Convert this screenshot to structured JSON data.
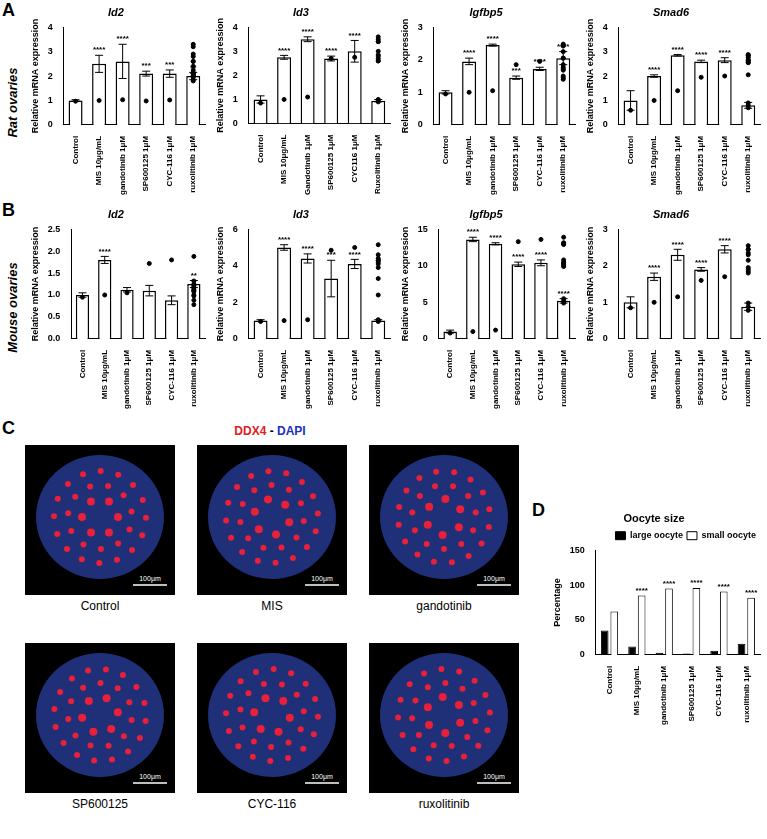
{
  "chart_data": [
    {
      "type": "bar",
      "title": "Id2",
      "y_label": "Relative mRNA expression",
      "categories": [
        "Control",
        "MIS 10μg/mL",
        "gandotinib 1μM",
        "SP600125 1μM",
        "CYC-116 1μM",
        "ruxolitinib 1μM"
      ],
      "values": [
        1.0,
        2.5,
        2.6,
        2.1,
        2.1,
        2.0
      ],
      "errors": [
        0.03,
        0.35,
        0.7,
        0.1,
        0.15,
        0.15
      ],
      "points": [
        [
          0.97,
          1.0,
          1.03,
          0.98,
          1.02
        ],
        [
          2.1,
          2.4,
          2.6,
          2.8,
          2.9
        ],
        [
          1.8,
          2.0,
          2.6,
          3.2,
          3.3
        ],
        [
          2.0,
          2.1,
          2.15
        ],
        [
          1.95,
          2.1,
          2.25
        ],
        [
          1.85,
          2.0,
          2.1
        ]
      ],
      "annotations": [
        null,
        "****",
        "****",
        "***",
        "***",
        "**"
      ],
      "color": "#ffffff",
      "ylim": [
        0,
        4
      ],
      "yticks": [
        0,
        1,
        2,
        3,
        4
      ],
      "grid": false
    },
    {
      "type": "bar",
      "title": "Id3",
      "y_label": "Relative mRNA expression",
      "categories": [
        "Control",
        "MIS 10μg/mL",
        "Gandotinib 1μM",
        "SP600125 1μM",
        "CYC116 1μM",
        "Ruxolitinib 1μM"
      ],
      "values": [
        1.0,
        2.75,
        3.5,
        2.7,
        3.0,
        0.95
      ],
      "errors": [
        0.15,
        0.08,
        0.1,
        0.1,
        0.45,
        0.05
      ],
      "points": [
        [
          0.85,
          1.0,
          1.1
        ],
        [
          2.7,
          2.75,
          2.85
        ],
        [
          3.4,
          3.5,
          3.6
        ],
        [
          2.6,
          2.7,
          2.8
        ],
        [
          2.6,
          3.0,
          3.4
        ],
        [
          0.9,
          0.95,
          1.0
        ]
      ],
      "annotations": [
        null,
        "****",
        "****",
        "****",
        "****",
        null
      ],
      "color": "#ffffff",
      "ylim": [
        0,
        4
      ],
      "yticks": [
        0,
        1,
        2,
        3,
        4
      ],
      "grid": false
    },
    {
      "type": "bar",
      "title": "Igfbp5",
      "y_label": "Relative mRNA expression",
      "categories": [
        "Control",
        "MIS 10μg/mL",
        "gandotinib 1μM",
        "SP600125 1μM",
        "CYC-116 1μM",
        "ruxolitinib 1μM"
      ],
      "values": [
        1.0,
        1.95,
        2.45,
        1.45,
        1.72,
        2.05
      ],
      "errors": [
        0.05,
        0.1,
        0.03,
        0.05,
        0.05,
        0.2
      ],
      "points": [
        [
          0.95,
          1.0,
          1.05
        ],
        [
          1.85,
          1.95,
          2.05
        ],
        [
          2.42,
          2.45,
          2.48
        ],
        [
          1.4,
          1.45,
          1.5
        ],
        [
          1.68,
          1.72,
          1.77
        ],
        [
          1.85,
          2.05,
          2.25
        ]
      ],
      "annotations": [
        null,
        "****",
        "****",
        "***",
        "****",
        "****"
      ],
      "color": "#ffffff",
      "ylim": [
        0,
        3
      ],
      "yticks": [
        0,
        1,
        2,
        3
      ],
      "grid": false
    },
    {
      "type": "bar",
      "title": "Smad6",
      "y_label": "Relative mRNA expression",
      "categories": [
        "Control",
        "MIS 10μg/mL",
        "gandotinib 1μM",
        "SP600125 1μM",
        "CYC-116 1μM",
        "ruxolitinib 1μM"
      ],
      "values": [
        1.0,
        2.0,
        2.85,
        2.6,
        2.65,
        0.8
      ],
      "errors": [
        0.4,
        0.05,
        0.03,
        0.05,
        0.1,
        0.12
      ],
      "points": [
        [
          0.6,
          1.0,
          1.4
        ],
        [
          1.95,
          2.0,
          2.05
        ],
        [
          2.83,
          2.85,
          2.88
        ],
        [
          2.55,
          2.6,
          2.65
        ],
        [
          2.55,
          2.65,
          2.75
        ],
        [
          0.7,
          0.8,
          0.9
        ]
      ],
      "annotations": [
        null,
        "****",
        "****",
        "****",
        "****",
        null
      ],
      "color": "#ffffff",
      "ylim": [
        0,
        4
      ],
      "yticks": [
        0,
        1,
        2,
        3,
        4
      ],
      "grid": false
    },
    {
      "type": "bar",
      "title": "Id2",
      "y_label": "Relative mRNA expression",
      "categories": [
        "Control",
        "MIS 10μg/mL",
        "gandotinib 1μM",
        "SP600125 1μM",
        "CYC-116 1μM",
        "ruxolitinib 1μM"
      ],
      "values": [
        1.0,
        1.8,
        1.12,
        1.1,
        0.88,
        1.25
      ],
      "errors": [
        0.05,
        0.08,
        0.05,
        0.12,
        0.1,
        0.08
      ],
      "points": [
        [
          0.95,
          1.0,
          1.05
        ],
        [
          1.72,
          1.8,
          1.88
        ],
        [
          1.08,
          1.12,
          1.16
        ],
        [
          1.0,
          1.1,
          1.22
        ],
        [
          0.78,
          0.88,
          0.98
        ],
        [
          1.18,
          1.25,
          1.32
        ]
      ],
      "annotations": [
        null,
        "****",
        null,
        null,
        null,
        "**"
      ],
      "color": "#ffffff",
      "ylim": [
        0,
        2.5
      ],
      "yticks": [
        {
          "value": 0,
          "label": "0.0"
        },
        0.5,
        {
          "value": 1,
          "label": "1.0"
        },
        1.5,
        {
          "value": 2,
          "label": "2.0"
        },
        2.5
      ],
      "grid": false
    },
    {
      "type": "bar",
      "title": "Id3",
      "y_label": "Relative mRNA expression",
      "categories": [
        "Control",
        "MIS 10μg/mL",
        "gandotinib 1μM",
        "SP600125 1μM",
        "CYC-116 1μM",
        "ruxolitinib 1μM"
      ],
      "values": [
        1.0,
        5.0,
        4.4,
        3.3,
        4.1,
        1.0
      ],
      "errors": [
        0.05,
        0.15,
        0.25,
        1.0,
        0.25,
        0.05
      ],
      "points": [
        [
          0.95,
          1.0,
          1.05
        ],
        [
          4.85,
          5.0,
          5.15
        ],
        [
          4.2,
          4.4,
          4.6
        ],
        [
          2.4,
          3.3,
          4.3
        ],
        [
          3.9,
          4.1,
          4.3
        ],
        [
          0.95,
          1.0,
          1.05
        ]
      ],
      "annotations": [
        null,
        "****",
        "****",
        "***",
        "****",
        null
      ],
      "color": "#ffffff",
      "ylim": [
        0,
        6
      ],
      "yticks": [
        0,
        2,
        4,
        6
      ],
      "grid": false
    },
    {
      "type": "bar",
      "title": "Igfbp5",
      "y_label": "Relative mRNA expression",
      "categories": [
        "Control",
        "MIS 10μg/mL",
        "gandotinib 1μM",
        "SP600125 1μM",
        "CYC-116 1μM",
        "ruxolitinib 1μM"
      ],
      "values": [
        1.0,
        13.6,
        13.0,
        10.2,
        10.4,
        5.2
      ],
      "errors": [
        0.2,
        0.3,
        0.15,
        0.3,
        0.4,
        0.3
      ],
      "points": [
        [
          0.8,
          1.0,
          1.2
        ],
        [
          13.3,
          13.6,
          13.9
        ],
        [
          12.9,
          13.0,
          13.15
        ],
        [
          9.9,
          10.2,
          10.5
        ],
        [
          10.0,
          10.4,
          10.8
        ],
        [
          4.9,
          5.2,
          5.5
        ]
      ],
      "annotations": [
        null,
        "****",
        "****",
        "****",
        "****",
        "****"
      ],
      "color": "#ffffff",
      "ylim": [
        0,
        15
      ],
      "yticks": [
        0,
        5,
        10,
        15
      ],
      "grid": false
    },
    {
      "type": "bar",
      "title": "Smad6",
      "y_label": "Relative mRNA expression",
      "categories": [
        "Control",
        "MIS 10μg/mL",
        "gandotinib 1μM",
        "SP600125 1μM",
        "CYC-116 1μM",
        "ruxolitinib 1μM"
      ],
      "values": [
        1.0,
        1.7,
        2.3,
        1.9,
        2.45,
        0.88
      ],
      "errors": [
        0.15,
        0.1,
        0.15,
        0.05,
        0.1,
        0.1
      ],
      "points": [
        [
          0.85,
          1.0,
          1.15
        ],
        [
          1.6,
          1.7,
          1.8
        ],
        [
          2.15,
          2.3,
          2.45
        ],
        [
          1.85,
          1.9,
          1.95
        ],
        [
          2.35,
          2.45,
          2.55
        ],
        [
          0.78,
          0.88,
          0.98
        ]
      ],
      "annotations": [
        null,
        "****",
        "****",
        "****",
        "****",
        null
      ],
      "color": "#ffffff",
      "ylim": [
        0,
        3
      ],
      "yticks": [
        0,
        1,
        2,
        3
      ],
      "grid": false
    },
    {
      "type": "bar",
      "title": "Oocyte size",
      "y_label": "Percentage",
      "categories": [
        "Control",
        "MIS 10μg/mL",
        "gandotinib 1μM",
        "SP600125 1μM",
        "CYC-116 1μM",
        "ruxolitinib 1μM"
      ],
      "series": [
        {
          "name": "large oocyte",
          "color": "#000000",
          "values": [
            35,
            12,
            3,
            2,
            6,
            16
          ]
        },
        {
          "name": "small oocyte",
          "color": "#ffffff",
          "values": [
            62,
            85,
            95,
            96,
            91,
            82
          ],
          "annotations": [
            null,
            "****",
            "****",
            "****",
            "****",
            "****"
          ]
        }
      ],
      "legend": "top-right",
      "ylim": [
        0,
        150
      ],
      "yticks": [
        0,
        50,
        100,
        150
      ],
      "grid": false
    }
  ],
  "figure": {
    "panel_labels": [
      "A",
      "B",
      "C",
      "D"
    ],
    "row_labels": [
      "Rat ovaries",
      "Mouse ovaries"
    ],
    "images": {
      "title": [
        {
          "text": "DDX4",
          "color": "#e02020"
        },
        {
          "text": " - ",
          "color": "#000000"
        },
        {
          "text": "DAPI",
          "color": "#2030c0"
        }
      ],
      "captions": [
        "Control",
        "MIS",
        "gandotinib",
        "SP600125",
        "CYC-116",
        "ruxolitinib"
      ],
      "scale_bar": "100μm"
    }
  }
}
